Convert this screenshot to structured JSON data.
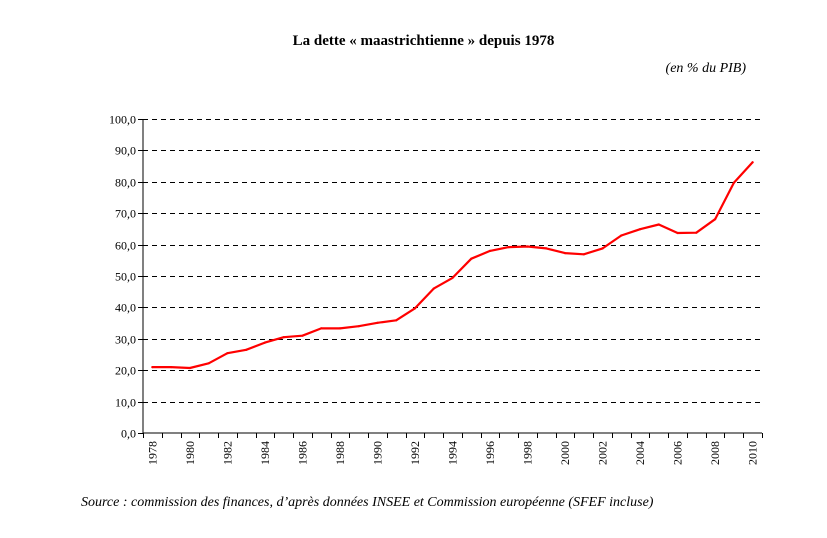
{
  "chart_data": {
    "type": "line",
    "title": "La dette « maastrichtienne » depuis 1978",
    "unit_label": "(en % du PIB)",
    "xlabel": "",
    "ylabel": "",
    "ylim": [
      0,
      100
    ],
    "y_ticks": [
      "0,0",
      "10,0",
      "20,0",
      "30,0",
      "40,0",
      "50,0",
      "60,0",
      "70,0",
      "80,0",
      "90,0",
      "100,0"
    ],
    "y_tick_values": [
      0,
      10,
      20,
      30,
      40,
      50,
      60,
      70,
      80,
      90,
      100
    ],
    "x_tick_labels": [
      "1978",
      "1980",
      "1982",
      "1984",
      "1986",
      "1988",
      "1990",
      "1992",
      "1994",
      "1996",
      "1998",
      "2000",
      "2002",
      "2004",
      "2006",
      "2008",
      "2010"
    ],
    "grid": true,
    "grid_style": "dashed",
    "legend": "none",
    "x": [
      1978,
      1979,
      1980,
      1981,
      1982,
      1983,
      1984,
      1985,
      1986,
      1987,
      1988,
      1989,
      1990,
      1991,
      1992,
      1993,
      1994,
      1995,
      1996,
      1997,
      1998,
      1999,
      2000,
      2001,
      2002,
      2003,
      2004,
      2005,
      2006,
      2007,
      2008,
      2009,
      2010
    ],
    "series": [
      {
        "name": "Dette maastrichtienne",
        "color": "#ff0000",
        "values": [
          21.0,
          21.0,
          20.7,
          22.2,
          25.4,
          26.5,
          28.8,
          30.5,
          31.0,
          33.3,
          33.3,
          34.0,
          35.1,
          35.9,
          39.7,
          46.0,
          49.4,
          55.5,
          58.0,
          59.2,
          59.4,
          58.8,
          57.3,
          56.9,
          58.8,
          62.9,
          64.9,
          66.4,
          63.7,
          63.8,
          68.1,
          79.7,
          86.2
        ]
      }
    ]
  },
  "source": "Source : commission des finances, d’après données INSEE et Commission européenne (SFEF incluse)"
}
